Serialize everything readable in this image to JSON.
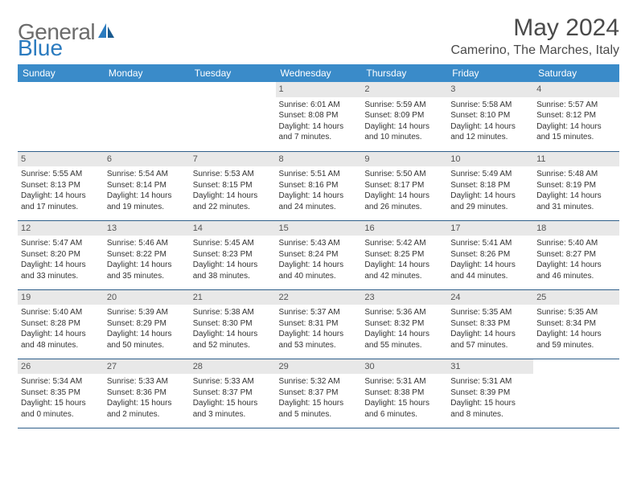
{
  "logo": {
    "word1": "General",
    "word2": "Blue"
  },
  "title": "May 2024",
  "location": "Camerino, The Marches, Italy",
  "colors": {
    "header_bg": "#3a8bc9",
    "header_text": "#ffffff",
    "daynum_bg": "#e8e8e8",
    "border": "#2f5f8a",
    "logo_gray": "#6b6b6b",
    "logo_blue": "#2b7bbf"
  },
  "weekdays": [
    "Sunday",
    "Monday",
    "Tuesday",
    "Wednesday",
    "Thursday",
    "Friday",
    "Saturday"
  ],
  "weeks": [
    [
      null,
      null,
      null,
      {
        "n": "1",
        "sr": "Sunrise: 6:01 AM",
        "ss": "Sunset: 8:08 PM",
        "dl1": "Daylight: 14 hours",
        "dl2": "and 7 minutes."
      },
      {
        "n": "2",
        "sr": "Sunrise: 5:59 AM",
        "ss": "Sunset: 8:09 PM",
        "dl1": "Daylight: 14 hours",
        "dl2": "and 10 minutes."
      },
      {
        "n": "3",
        "sr": "Sunrise: 5:58 AM",
        "ss": "Sunset: 8:10 PM",
        "dl1": "Daylight: 14 hours",
        "dl2": "and 12 minutes."
      },
      {
        "n": "4",
        "sr": "Sunrise: 5:57 AM",
        "ss": "Sunset: 8:12 PM",
        "dl1": "Daylight: 14 hours",
        "dl2": "and 15 minutes."
      }
    ],
    [
      {
        "n": "5",
        "sr": "Sunrise: 5:55 AM",
        "ss": "Sunset: 8:13 PM",
        "dl1": "Daylight: 14 hours",
        "dl2": "and 17 minutes."
      },
      {
        "n": "6",
        "sr": "Sunrise: 5:54 AM",
        "ss": "Sunset: 8:14 PM",
        "dl1": "Daylight: 14 hours",
        "dl2": "and 19 minutes."
      },
      {
        "n": "7",
        "sr": "Sunrise: 5:53 AM",
        "ss": "Sunset: 8:15 PM",
        "dl1": "Daylight: 14 hours",
        "dl2": "and 22 minutes."
      },
      {
        "n": "8",
        "sr": "Sunrise: 5:51 AM",
        "ss": "Sunset: 8:16 PM",
        "dl1": "Daylight: 14 hours",
        "dl2": "and 24 minutes."
      },
      {
        "n": "9",
        "sr": "Sunrise: 5:50 AM",
        "ss": "Sunset: 8:17 PM",
        "dl1": "Daylight: 14 hours",
        "dl2": "and 26 minutes."
      },
      {
        "n": "10",
        "sr": "Sunrise: 5:49 AM",
        "ss": "Sunset: 8:18 PM",
        "dl1": "Daylight: 14 hours",
        "dl2": "and 29 minutes."
      },
      {
        "n": "11",
        "sr": "Sunrise: 5:48 AM",
        "ss": "Sunset: 8:19 PM",
        "dl1": "Daylight: 14 hours",
        "dl2": "and 31 minutes."
      }
    ],
    [
      {
        "n": "12",
        "sr": "Sunrise: 5:47 AM",
        "ss": "Sunset: 8:20 PM",
        "dl1": "Daylight: 14 hours",
        "dl2": "and 33 minutes."
      },
      {
        "n": "13",
        "sr": "Sunrise: 5:46 AM",
        "ss": "Sunset: 8:22 PM",
        "dl1": "Daylight: 14 hours",
        "dl2": "and 35 minutes."
      },
      {
        "n": "14",
        "sr": "Sunrise: 5:45 AM",
        "ss": "Sunset: 8:23 PM",
        "dl1": "Daylight: 14 hours",
        "dl2": "and 38 minutes."
      },
      {
        "n": "15",
        "sr": "Sunrise: 5:43 AM",
        "ss": "Sunset: 8:24 PM",
        "dl1": "Daylight: 14 hours",
        "dl2": "and 40 minutes."
      },
      {
        "n": "16",
        "sr": "Sunrise: 5:42 AM",
        "ss": "Sunset: 8:25 PM",
        "dl1": "Daylight: 14 hours",
        "dl2": "and 42 minutes."
      },
      {
        "n": "17",
        "sr": "Sunrise: 5:41 AM",
        "ss": "Sunset: 8:26 PM",
        "dl1": "Daylight: 14 hours",
        "dl2": "and 44 minutes."
      },
      {
        "n": "18",
        "sr": "Sunrise: 5:40 AM",
        "ss": "Sunset: 8:27 PM",
        "dl1": "Daylight: 14 hours",
        "dl2": "and 46 minutes."
      }
    ],
    [
      {
        "n": "19",
        "sr": "Sunrise: 5:40 AM",
        "ss": "Sunset: 8:28 PM",
        "dl1": "Daylight: 14 hours",
        "dl2": "and 48 minutes."
      },
      {
        "n": "20",
        "sr": "Sunrise: 5:39 AM",
        "ss": "Sunset: 8:29 PM",
        "dl1": "Daylight: 14 hours",
        "dl2": "and 50 minutes."
      },
      {
        "n": "21",
        "sr": "Sunrise: 5:38 AM",
        "ss": "Sunset: 8:30 PM",
        "dl1": "Daylight: 14 hours",
        "dl2": "and 52 minutes."
      },
      {
        "n": "22",
        "sr": "Sunrise: 5:37 AM",
        "ss": "Sunset: 8:31 PM",
        "dl1": "Daylight: 14 hours",
        "dl2": "and 53 minutes."
      },
      {
        "n": "23",
        "sr": "Sunrise: 5:36 AM",
        "ss": "Sunset: 8:32 PM",
        "dl1": "Daylight: 14 hours",
        "dl2": "and 55 minutes."
      },
      {
        "n": "24",
        "sr": "Sunrise: 5:35 AM",
        "ss": "Sunset: 8:33 PM",
        "dl1": "Daylight: 14 hours",
        "dl2": "and 57 minutes."
      },
      {
        "n": "25",
        "sr": "Sunrise: 5:35 AM",
        "ss": "Sunset: 8:34 PM",
        "dl1": "Daylight: 14 hours",
        "dl2": "and 59 minutes."
      }
    ],
    [
      {
        "n": "26",
        "sr": "Sunrise: 5:34 AM",
        "ss": "Sunset: 8:35 PM",
        "dl1": "Daylight: 15 hours",
        "dl2": "and 0 minutes."
      },
      {
        "n": "27",
        "sr": "Sunrise: 5:33 AM",
        "ss": "Sunset: 8:36 PM",
        "dl1": "Daylight: 15 hours",
        "dl2": "and 2 minutes."
      },
      {
        "n": "28",
        "sr": "Sunrise: 5:33 AM",
        "ss": "Sunset: 8:37 PM",
        "dl1": "Daylight: 15 hours",
        "dl2": "and 3 minutes."
      },
      {
        "n": "29",
        "sr": "Sunrise: 5:32 AM",
        "ss": "Sunset: 8:37 PM",
        "dl1": "Daylight: 15 hours",
        "dl2": "and 5 minutes."
      },
      {
        "n": "30",
        "sr": "Sunrise: 5:31 AM",
        "ss": "Sunset: 8:38 PM",
        "dl1": "Daylight: 15 hours",
        "dl2": "and 6 minutes."
      },
      {
        "n": "31",
        "sr": "Sunrise: 5:31 AM",
        "ss": "Sunset: 8:39 PM",
        "dl1": "Daylight: 15 hours",
        "dl2": "and 8 minutes."
      },
      null
    ]
  ]
}
